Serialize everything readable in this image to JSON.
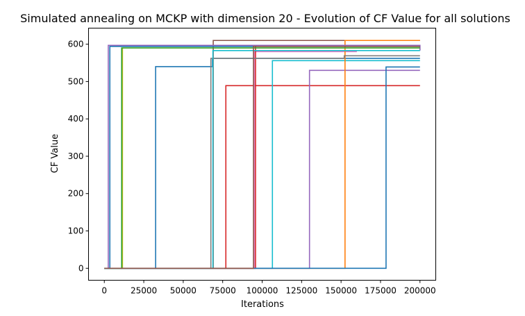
{
  "chart_data": {
    "type": "line",
    "title": "Simulated annealing on MCKP with dimension 20 - Evolution of CF Value for all solutions",
    "xlabel": "Iterations",
    "ylabel": "CF Value",
    "xlim": [
      -10000,
      210000
    ],
    "ylim": [
      -32,
      643
    ],
    "grid": false,
    "legend": "none",
    "x_ticks": [
      0,
      25000,
      50000,
      75000,
      100000,
      125000,
      150000,
      175000,
      200000
    ],
    "x_tick_labels": [
      "0",
      "25000",
      "50000",
      "75000",
      "100000",
      "125000",
      "150000",
      "175000",
      "200000"
    ],
    "y_ticks": [
      0,
      100,
      200,
      300,
      400,
      500,
      600
    ],
    "y_tick_labels": [
      "0",
      "100",
      "200",
      "300",
      "400",
      "500",
      "600"
    ],
    "series": [
      {
        "color": "#bcbd22",
        "steps": [
          [
            0,
            0
          ],
          [
            11500,
            0
          ],
          [
            11500,
            590
          ],
          [
            200000,
            590
          ]
        ]
      },
      {
        "color": "#1f77b4",
        "steps": [
          [
            0,
            0
          ],
          [
            32500,
            0
          ],
          [
            32500,
            540
          ],
          [
            68500,
            540
          ],
          [
            68500,
            562
          ],
          [
            200000,
            562
          ]
        ]
      },
      {
        "color": "#8c564b",
        "steps": [
          [
            0,
            0
          ],
          [
            69000,
            0
          ],
          [
            69000,
            610
          ],
          [
            200000,
            610
          ]
        ]
      },
      {
        "color": "#d62728",
        "steps": [
          [
            0,
            0
          ],
          [
            77000,
            0
          ],
          [
            77000,
            489
          ],
          [
            200000,
            489
          ]
        ]
      },
      {
        "color": "#e377c2",
        "steps": [
          [
            0,
            0
          ],
          [
            95000,
            0
          ],
          [
            95000,
            580
          ],
          [
            160000,
            580
          ]
        ]
      },
      {
        "color": "#d62728",
        "steps": [
          [
            0,
            0
          ],
          [
            95800,
            0
          ],
          [
            95800,
            597
          ],
          [
            200000,
            597
          ]
        ]
      },
      {
        "color": "#17becf",
        "steps": [
          [
            0,
            0
          ],
          [
            106500,
            0
          ],
          [
            106500,
            556
          ],
          [
            200000,
            556
          ]
        ]
      },
      {
        "color": "#9467bd",
        "steps": [
          [
            0,
            0
          ],
          [
            130000,
            0
          ],
          [
            130000,
            530
          ],
          [
            200000,
            530
          ]
        ]
      },
      {
        "color": "#ff7f0e",
        "steps": [
          [
            0,
            0
          ],
          [
            152500,
            0
          ],
          [
            152500,
            610
          ],
          [
            200000,
            610
          ]
        ]
      },
      {
        "color": "#1f77b4",
        "steps": [
          [
            0,
            0
          ],
          [
            178500,
            0
          ],
          [
            178500,
            539
          ],
          [
            200000,
            539
          ]
        ]
      },
      {
        "color": "#1f77b4",
        "steps": [
          [
            0,
            0
          ],
          [
            3500,
            0
          ],
          [
            3500,
            594
          ],
          [
            200000,
            594
          ]
        ]
      },
      {
        "color": "#7f7f7f",
        "steps": [
          [
            0,
            0
          ],
          [
            67500,
            0
          ],
          [
            67500,
            562
          ],
          [
            152000,
            562
          ],
          [
            152000,
            569
          ],
          [
            200000,
            569
          ]
        ]
      },
      {
        "color": "#9467bd",
        "steps": [
          [
            0,
            0
          ],
          [
            2500,
            0
          ],
          [
            2500,
            597
          ],
          [
            200000,
            597
          ],
          [
            200000,
            583
          ]
        ]
      },
      {
        "color": "#2ca02c",
        "steps": [
          [
            0,
            0
          ],
          [
            11000,
            0
          ],
          [
            11000,
            590
          ],
          [
            200000,
            590
          ]
        ]
      },
      {
        "color": "#17becf",
        "steps": [
          [
            0,
            0
          ],
          [
            68800,
            0
          ],
          [
            68800,
            583
          ],
          [
            200000,
            583
          ]
        ]
      },
      {
        "color": "#8c564b",
        "steps": [
          [
            0,
            0
          ],
          [
            94500,
            0
          ],
          [
            94500,
            594
          ],
          [
            200000,
            594
          ]
        ]
      }
    ]
  }
}
